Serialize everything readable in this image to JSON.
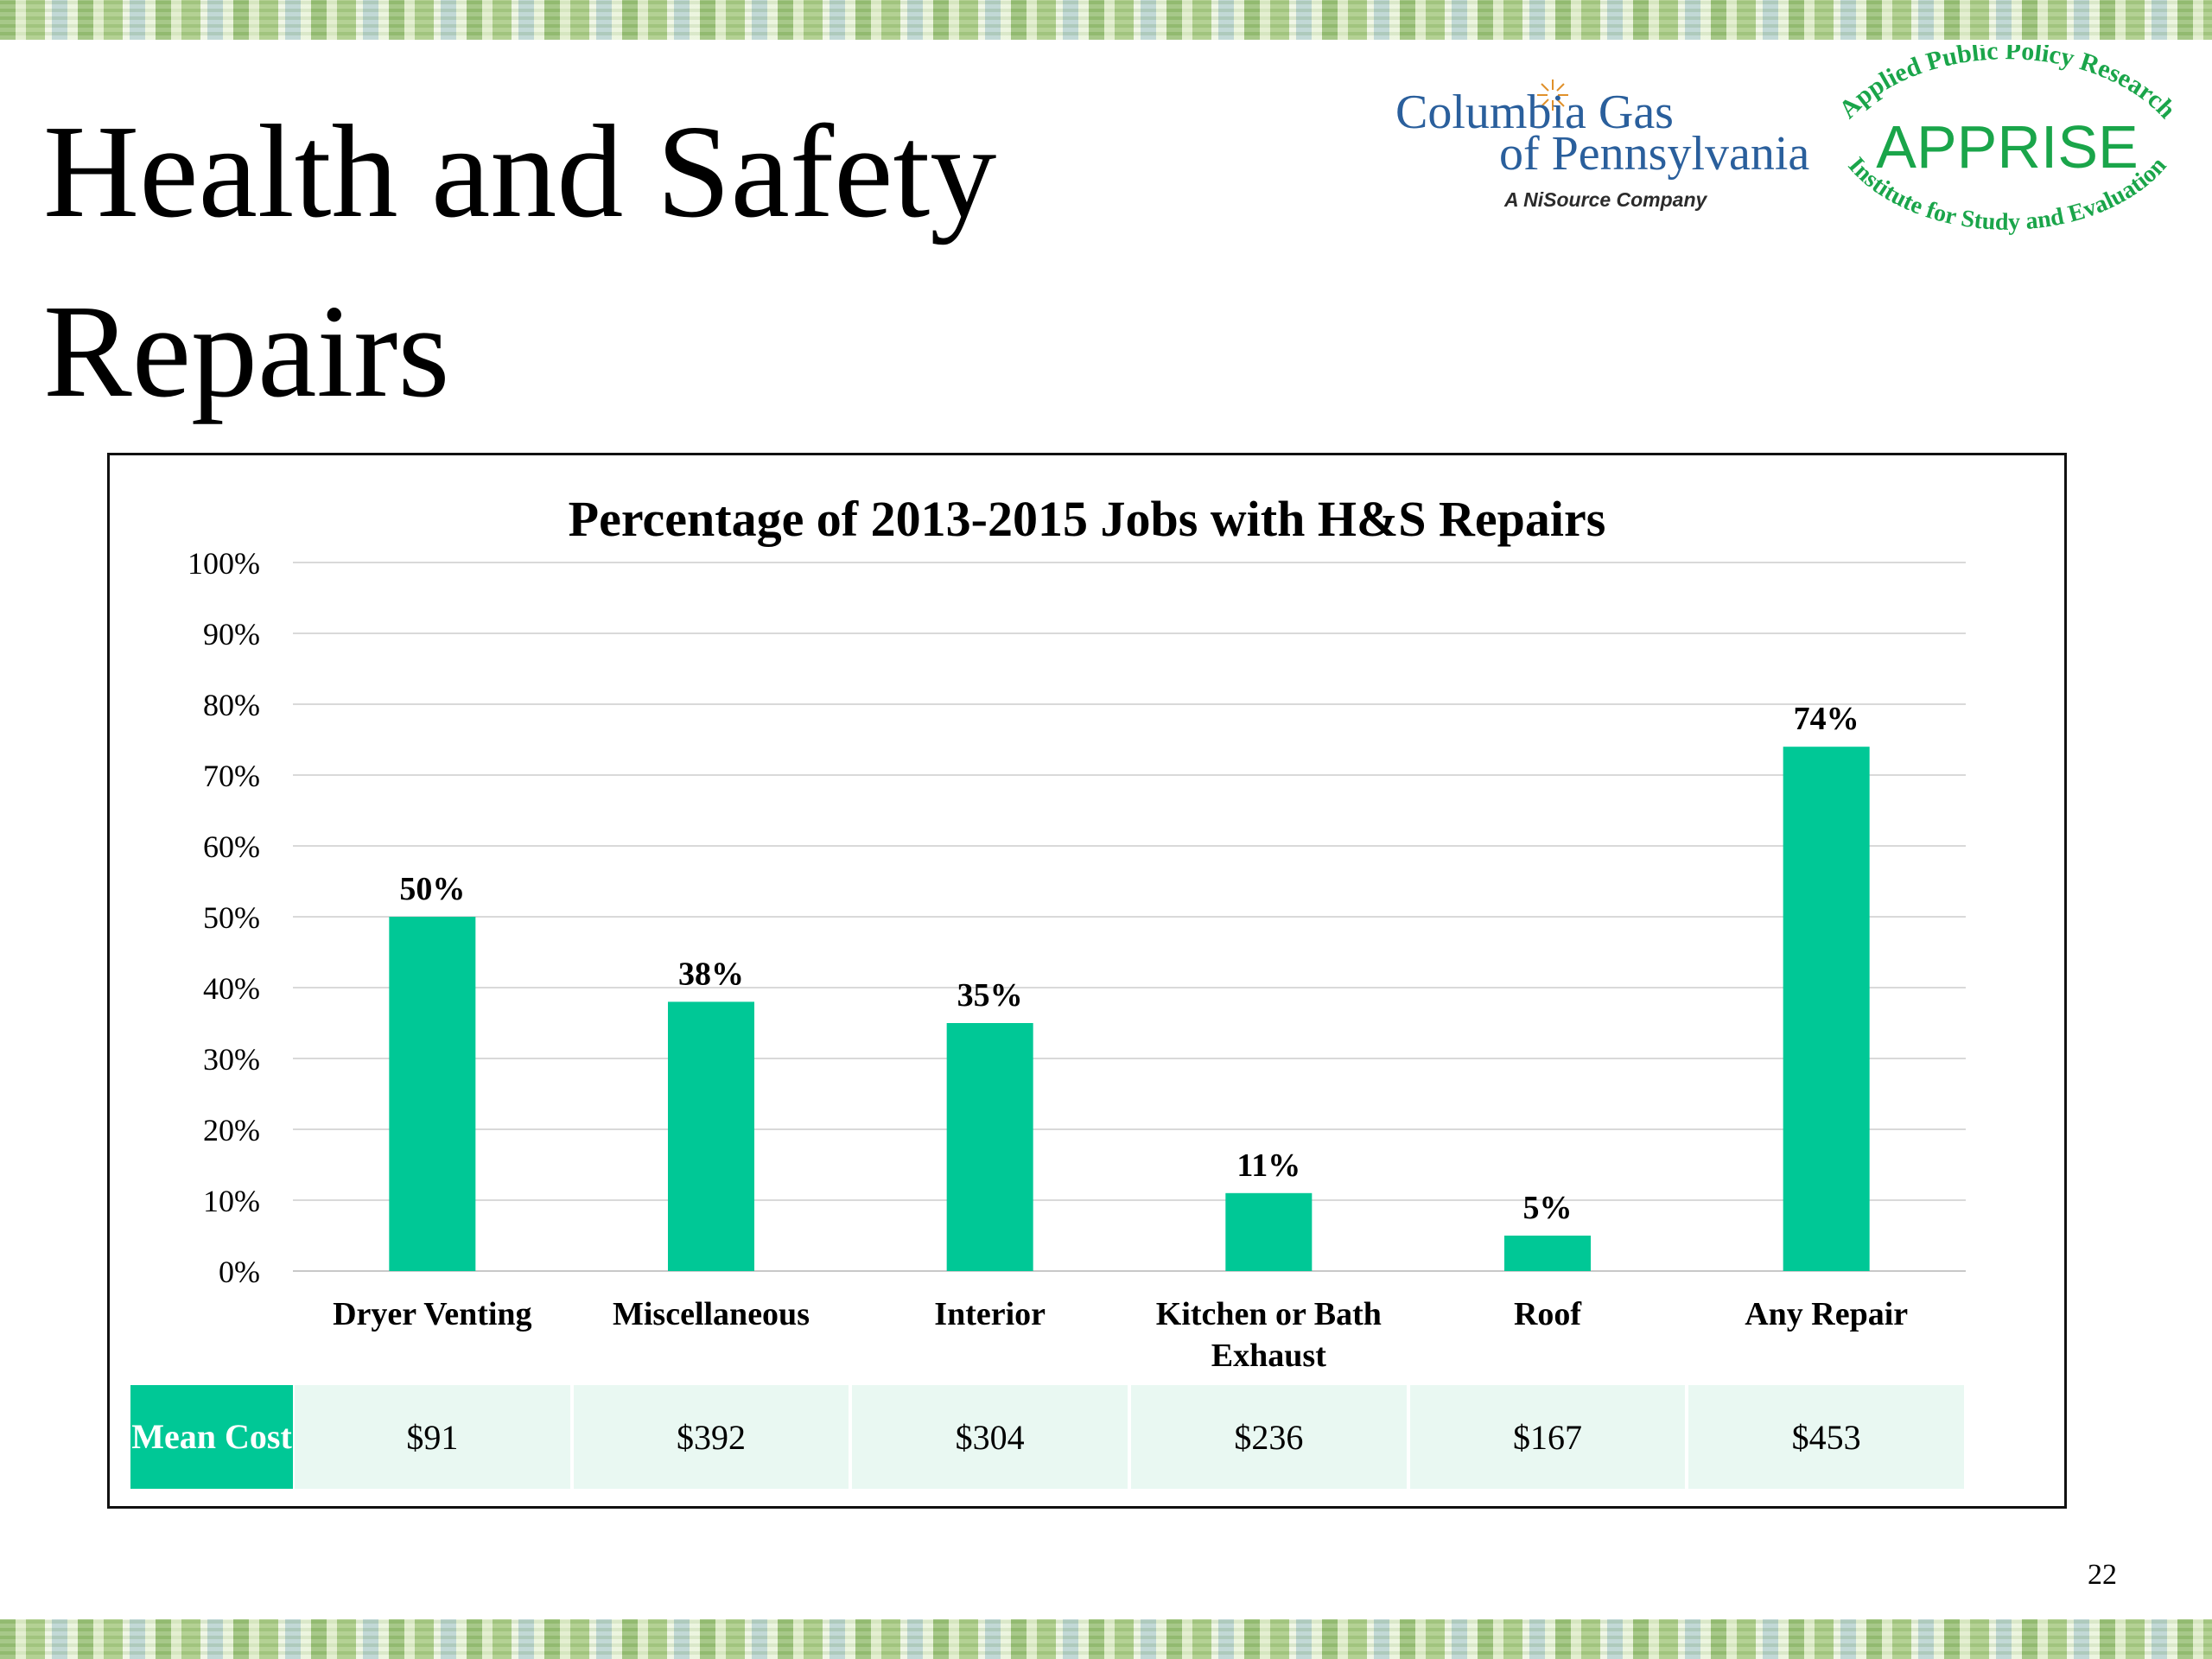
{
  "slide": {
    "title": "Health and Safety Repairs",
    "page_number": "22"
  },
  "logos": {
    "columbia": {
      "line1": "Columbia Gas",
      "line2": "of Pennsylvania",
      "line3": "A NiSource Company",
      "color": "#2a5f9c"
    },
    "apprise": {
      "top_arc": "Applied Public Policy Research",
      "name": "APPRISE",
      "bottom_arc": "Institute for Study and Evaluation",
      "color": "#1aa54a"
    }
  },
  "chart_data": {
    "type": "bar",
    "title": "Percentage of 2013-2015 Jobs with H&S Repairs",
    "categories": [
      "Dryer Venting",
      "Miscellaneous",
      "Interior",
      "Kitchen or Bath Exhaust",
      "Roof",
      "Any Repair"
    ],
    "values": [
      50,
      38,
      35,
      11,
      5,
      74
    ],
    "data_labels": [
      "50%",
      "38%",
      "35%",
      "11%",
      "5%",
      "74%"
    ],
    "ylim": [
      0,
      100
    ],
    "y_ticks": [
      "0%",
      "10%",
      "20%",
      "30%",
      "40%",
      "50%",
      "60%",
      "70%",
      "80%",
      "90%",
      "100%"
    ],
    "grid": true,
    "bar_color": "#00c896",
    "table": {
      "row_label": "Mean Cost",
      "values": [
        "$91",
        "$392",
        "$304",
        "$236",
        "$167",
        "$453"
      ]
    }
  }
}
